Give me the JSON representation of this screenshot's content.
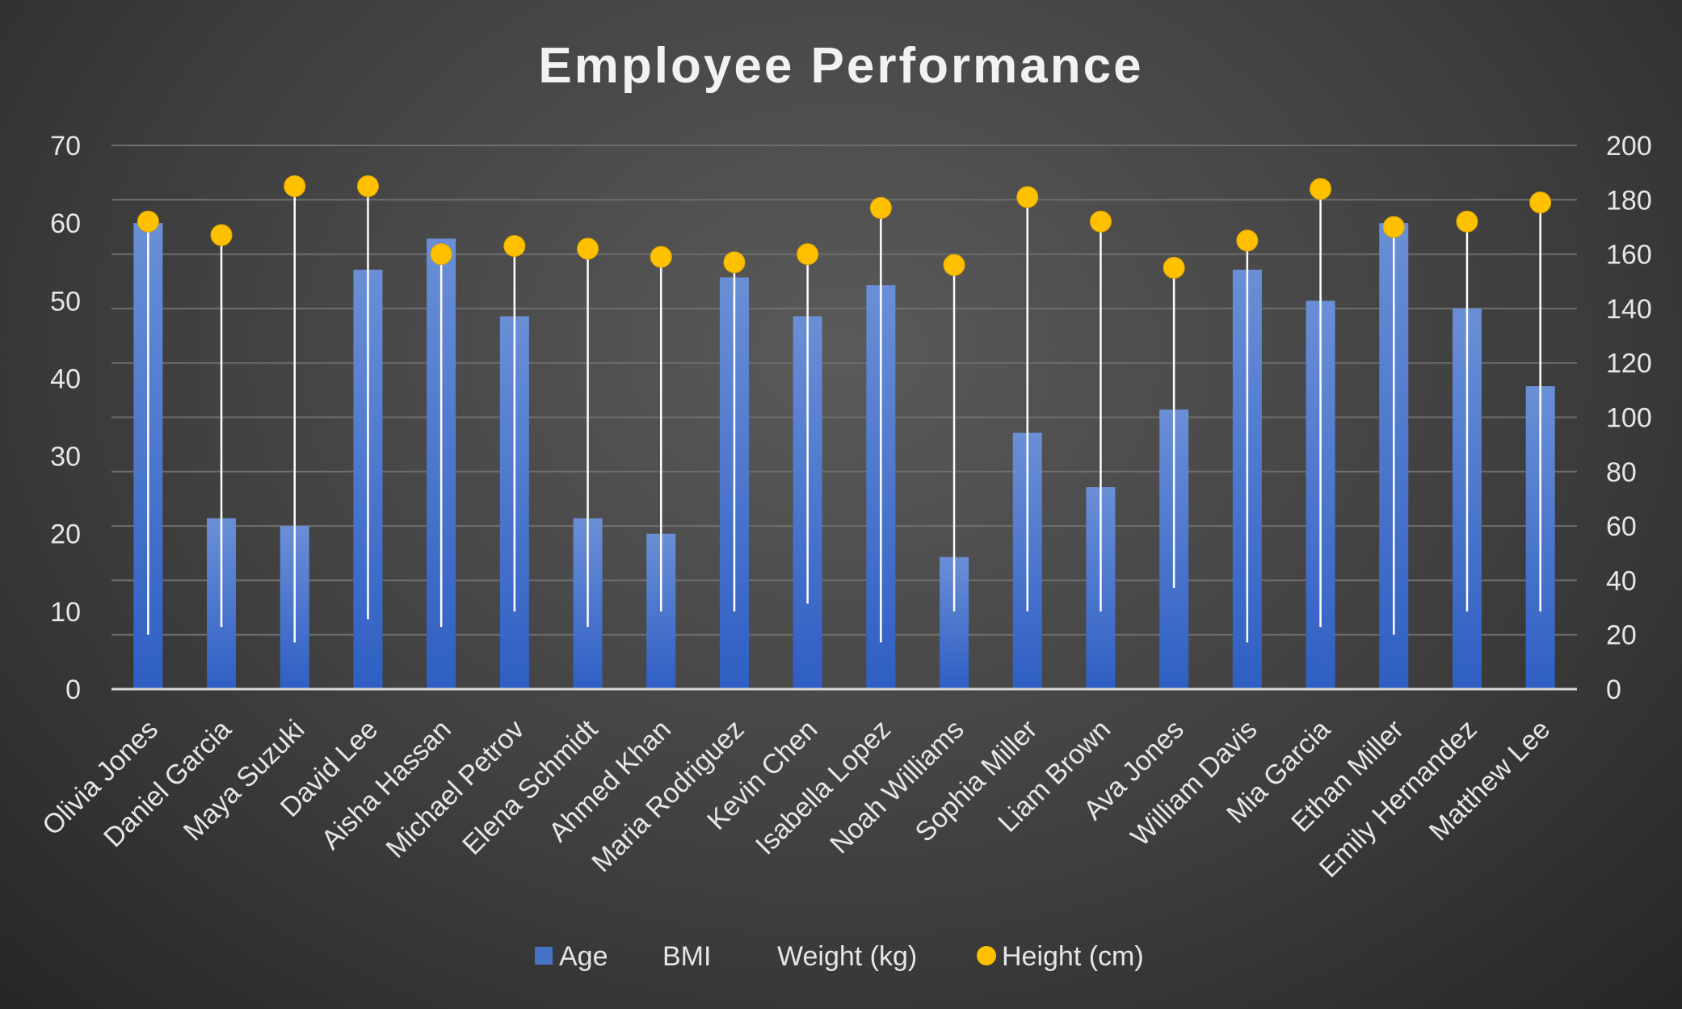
{
  "chart_data": {
    "type": "bar",
    "title": "Employee Performance",
    "xlabel": "",
    "ylabel": "",
    "ylim": [
      0,
      70
    ],
    "y2lim": [
      0,
      200
    ],
    "yticks": [
      "0",
      "10",
      "20",
      "30",
      "40",
      "50",
      "60",
      "70"
    ],
    "y2ticks": [
      "0",
      "20",
      "40",
      "60",
      "80",
      "100",
      "120",
      "140",
      "160",
      "180",
      "200"
    ],
    "grid": true,
    "legend_position": "bottom",
    "categories": [
      "Olivia Jones",
      "Daniel Garcia",
      "Maya Suzuki",
      "David Lee",
      "Aisha Hassan",
      "Michael Petrov",
      "Elena Schmidt",
      "Ahmed Khan",
      "Maria Rodriguez",
      "Kevin Chen",
      "Isabella Lopez",
      "Noah Williams",
      "Sophia Miller",
      "Liam Brown",
      "Ava Jones",
      "William Davis",
      "Mia Garcia",
      "Ethan Miller",
      "Emily Hernandez",
      "Matthew Lee"
    ],
    "series": [
      {
        "name": "Age",
        "type": "bar",
        "axis": "left",
        "color": "#4472c4",
        "values": [
          60,
          22,
          21,
          54,
          58,
          48,
          22,
          20,
          53,
          48,
          52,
          17,
          33,
          26,
          36,
          54,
          50,
          60,
          49,
          39
        ]
      },
      {
        "name": "BMI",
        "type": "line",
        "axis": "left",
        "color": "none",
        "values": [
          7,
          8,
          6,
          9,
          8,
          10,
          8,
          10,
          10,
          11,
          6,
          10,
          10,
          10,
          13,
          6,
          8,
          7,
          10,
          10
        ]
      },
      {
        "name": "Weight (kg)",
        "type": "line",
        "axis": "left",
        "color": "none",
        "values": [
          60,
          58,
          65,
          65,
          56,
          57,
          57,
          56,
          55,
          56,
          62,
          55,
          63,
          60,
          54,
          58,
          64,
          60,
          60,
          63
        ]
      },
      {
        "name": "Height (cm)",
        "type": "scatter",
        "axis": "right",
        "color": "#ffc000",
        "values": [
          172,
          167,
          185,
          185,
          160,
          163,
          162,
          159,
          157,
          160,
          177,
          156,
          181,
          172,
          155,
          165,
          184,
          170,
          172,
          179
        ]
      }
    ],
    "hi_lo_lines": {
      "color": "#ffffff"
    }
  }
}
